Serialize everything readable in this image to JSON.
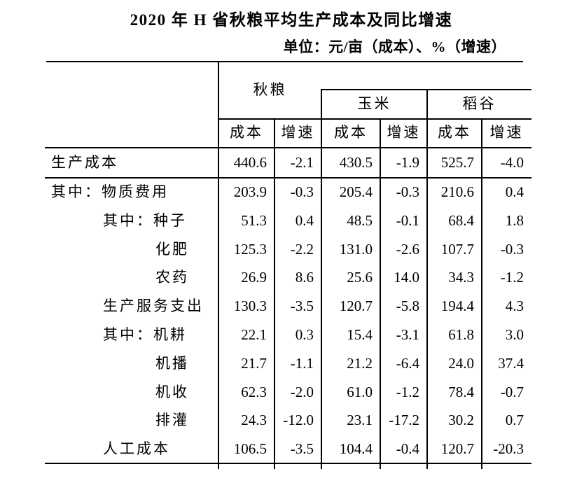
{
  "page": {
    "title": "2020 年 H 省秋粮平均生产成本及同比增速",
    "unit_note": "单位：元/亩（成本）、%（增速）"
  },
  "table": {
    "col_groups": [
      {
        "label": "秋粮"
      },
      {
        "label": "玉米"
      },
      {
        "label": "稻谷"
      }
    ],
    "sub_headers": {
      "cost": "成本",
      "growth": "增速"
    },
    "rows": [
      {
        "label": "生产成本",
        "indent": 0,
        "values": [
          "440.6",
          "-2.1",
          "430.5",
          "-1.9",
          "525.7",
          "-4.0"
        ]
      },
      {
        "label": "其中：物质费用",
        "indent": 0,
        "values": [
          "203.9",
          "-0.3",
          "205.4",
          "-0.3",
          "210.6",
          "0.4"
        ]
      },
      {
        "label": "其中：种子",
        "indent": 1,
        "values": [
          "51.3",
          "0.4",
          "48.5",
          "-0.1",
          "68.4",
          "1.8"
        ]
      },
      {
        "label": "化肥",
        "indent": 2,
        "values": [
          "125.3",
          "-2.2",
          "131.0",
          "-2.6",
          "107.7",
          "-0.3"
        ]
      },
      {
        "label": "农药",
        "indent": 2,
        "values": [
          "26.9",
          "8.6",
          "25.6",
          "14.0",
          "34.3",
          "-1.2"
        ]
      },
      {
        "label": "生产服务支出",
        "indent": 1,
        "values": [
          "130.3",
          "-3.5",
          "120.7",
          "-5.8",
          "194.4",
          "4.3"
        ]
      },
      {
        "label": "其中：机耕",
        "indent": 1,
        "values": [
          "22.1",
          "0.3",
          "15.4",
          "-3.1",
          "61.8",
          "3.0"
        ]
      },
      {
        "label": "机播",
        "indent": 2,
        "values": [
          "21.7",
          "-1.1",
          "21.2",
          "-6.4",
          "24.0",
          "37.4"
        ]
      },
      {
        "label": "机收",
        "indent": 2,
        "values": [
          "62.3",
          "-2.0",
          "61.0",
          "-1.2",
          "78.4",
          "-0.7"
        ]
      },
      {
        "label": "排灌",
        "indent": 2,
        "values": [
          "24.3",
          "-12.0",
          "23.1",
          "-17.2",
          "30.2",
          "0.7"
        ]
      },
      {
        "label": "人工成本",
        "indent": 1,
        "values": [
          "106.5",
          "-3.5",
          "104.4",
          "-0.4",
          "120.7",
          "-20.3"
        ]
      }
    ]
  },
  "colors": {
    "text": "#000000",
    "line": "#000000",
    "background": "#ffffff"
  }
}
